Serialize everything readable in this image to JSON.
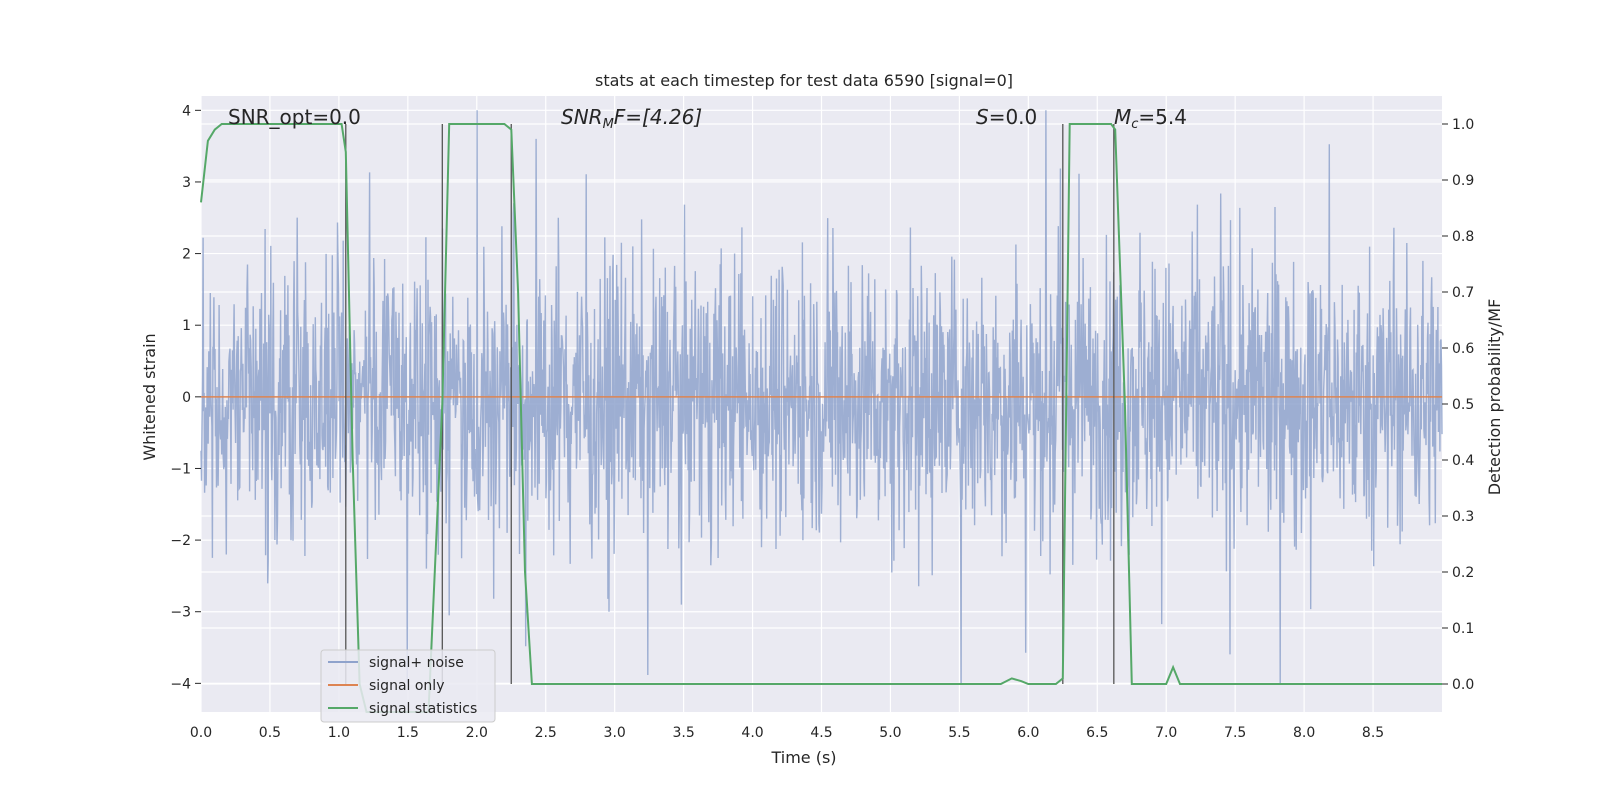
{
  "chart_data": {
    "type": "line",
    "title": "stats at each timestep for test data 6590 [signal=0]",
    "xlabel": "Time (s)",
    "ylabel": "Whitened strain",
    "y2label": "Detection probability/MF",
    "xlim": [
      0,
      9
    ],
    "ylim": [
      -4.4,
      4.2
    ],
    "y2lim": [
      -0.05,
      1.05
    ],
    "xticks": [
      "0.0",
      "0.5",
      "1.0",
      "1.5",
      "2.0",
      "2.5",
      "3.0",
      "3.5",
      "4.0",
      "4.5",
      "5.0",
      "5.5",
      "6.0",
      "6.5",
      "7.0",
      "7.5",
      "8.0",
      "8.5"
    ],
    "yticks": [
      "4",
      "3",
      "2",
      "1",
      "0",
      "−1",
      "−2",
      "−3",
      "−4"
    ],
    "y2ticks": [
      "1.0",
      "0.9",
      "0.8",
      "0.7",
      "0.6",
      "0.5",
      "0.4",
      "0.3",
      "0.2",
      "0.1",
      "0.0"
    ],
    "grid": true,
    "legend_position": "lower-left",
    "annotations": {
      "snr_opt": "SNR_opt=0.0",
      "snr_mf_base": "SNR",
      "snr_mf_sub": "M",
      "snr_mf_rest": "F=[4.26]",
      "s_var": "S",
      "s_rest": "=0.0",
      "mc_var": "M",
      "mc_sub": "c",
      "mc_rest": "=5.4"
    },
    "vertical_lines_x": [
      1.05,
      1.75,
      2.25,
      6.25,
      6.62
    ],
    "series": [
      {
        "name": "signal+ noise",
        "color": "#8fa3cc",
        "description_values": "noise_band",
        "noise_amplitude_typical": 2.0,
        "noise_amplitude_peak": 4.0
      },
      {
        "name": "signal only",
        "color": "#dd8452",
        "values_constant": 0
      },
      {
        "name": "signal statistics",
        "color": "#55a868",
        "axis": "right",
        "x": [
          0.0,
          0.05,
          0.1,
          0.15,
          0.2,
          0.3,
          0.5,
          0.7,
          0.9,
          1.0,
          1.02,
          1.05,
          1.1,
          1.15,
          1.2,
          1.3,
          1.5,
          1.65,
          1.75,
          1.8,
          1.85,
          1.9,
          2.0,
          2.1,
          2.2,
          2.25,
          2.3,
          2.35,
          2.4,
          2.45,
          2.5,
          3.0,
          4.0,
          5.0,
          5.8,
          5.88,
          5.95,
          6.0,
          6.1,
          6.2,
          6.25,
          6.3,
          6.35,
          6.4,
          6.5,
          6.6,
          6.63,
          6.7,
          6.75,
          6.8,
          7.0,
          7.05,
          7.1,
          7.15,
          7.3,
          8.0,
          9.0
        ],
        "y": [
          0.86,
          0.97,
          0.99,
          1.0,
          1.0,
          1.0,
          1.0,
          1.0,
          1.0,
          1.0,
          1.0,
          0.95,
          0.4,
          0.0,
          -0.05,
          -0.05,
          -0.05,
          -0.05,
          0.5,
          1.0,
          1.0,
          1.0,
          1.0,
          1.0,
          1.0,
          0.99,
          0.7,
          0.2,
          0.0,
          0.0,
          0.0,
          0.0,
          0.0,
          0.0,
          0.0,
          0.01,
          0.005,
          0.0,
          0.0,
          0.0,
          0.01,
          1.0,
          1.0,
          1.0,
          1.0,
          1.0,
          0.99,
          0.5,
          0.0,
          0.0,
          0.0,
          0.03,
          0.0,
          0.0,
          0.0,
          0.0,
          0.0
        ]
      }
    ]
  }
}
